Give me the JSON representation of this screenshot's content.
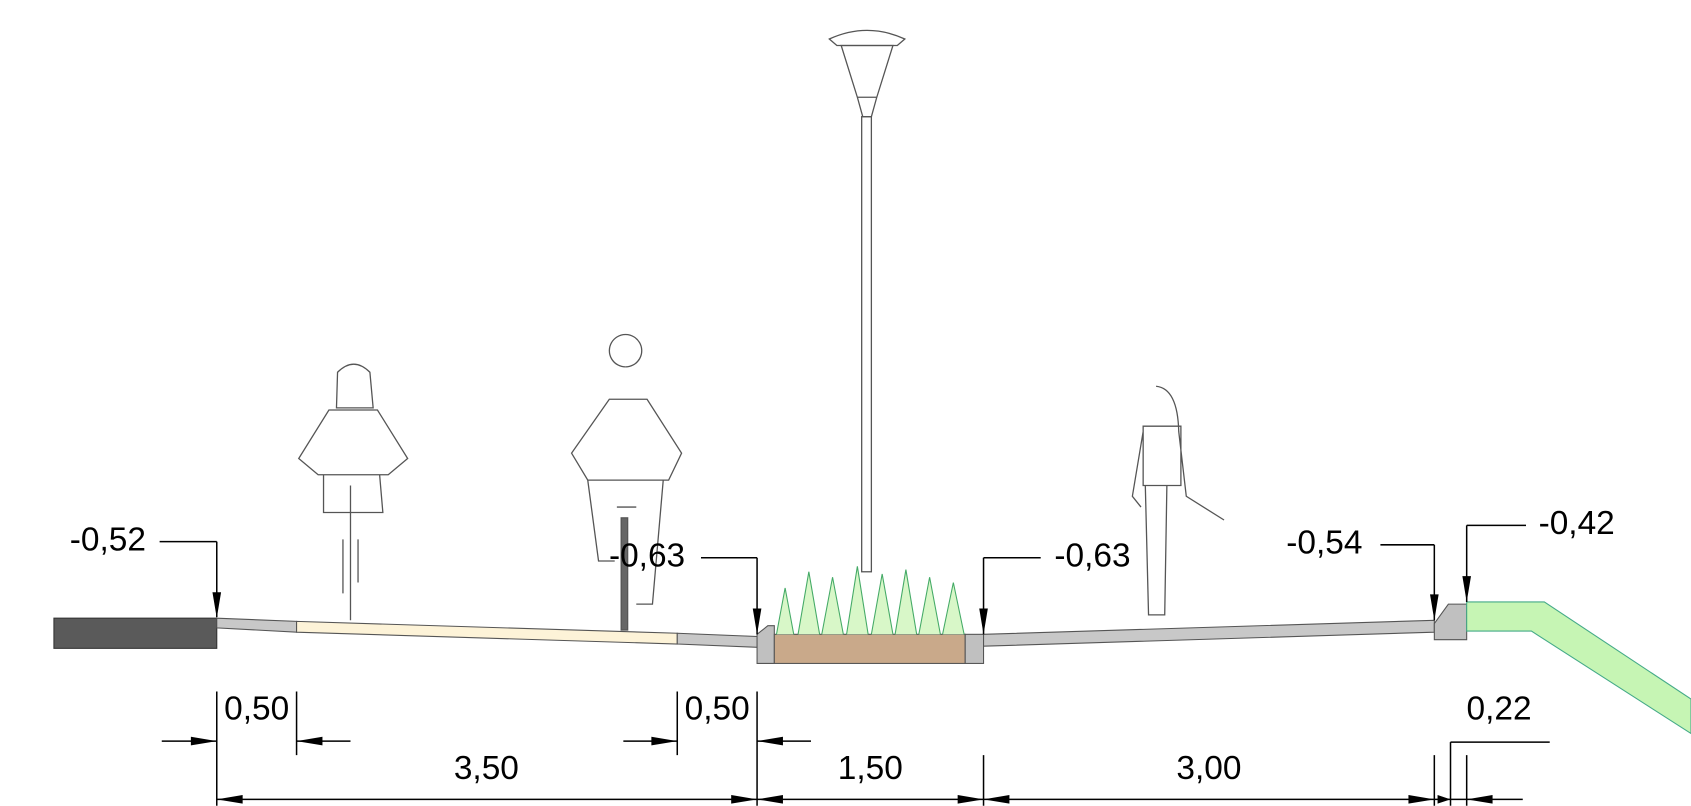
{
  "levels": [
    "-0,52",
    "-0,63",
    "-0,63",
    "-0,54",
    "-0,42"
  ],
  "widths": [
    "0,50",
    "0,50",
    "0,22",
    "3,50",
    "1,50",
    "3,00"
  ]
}
